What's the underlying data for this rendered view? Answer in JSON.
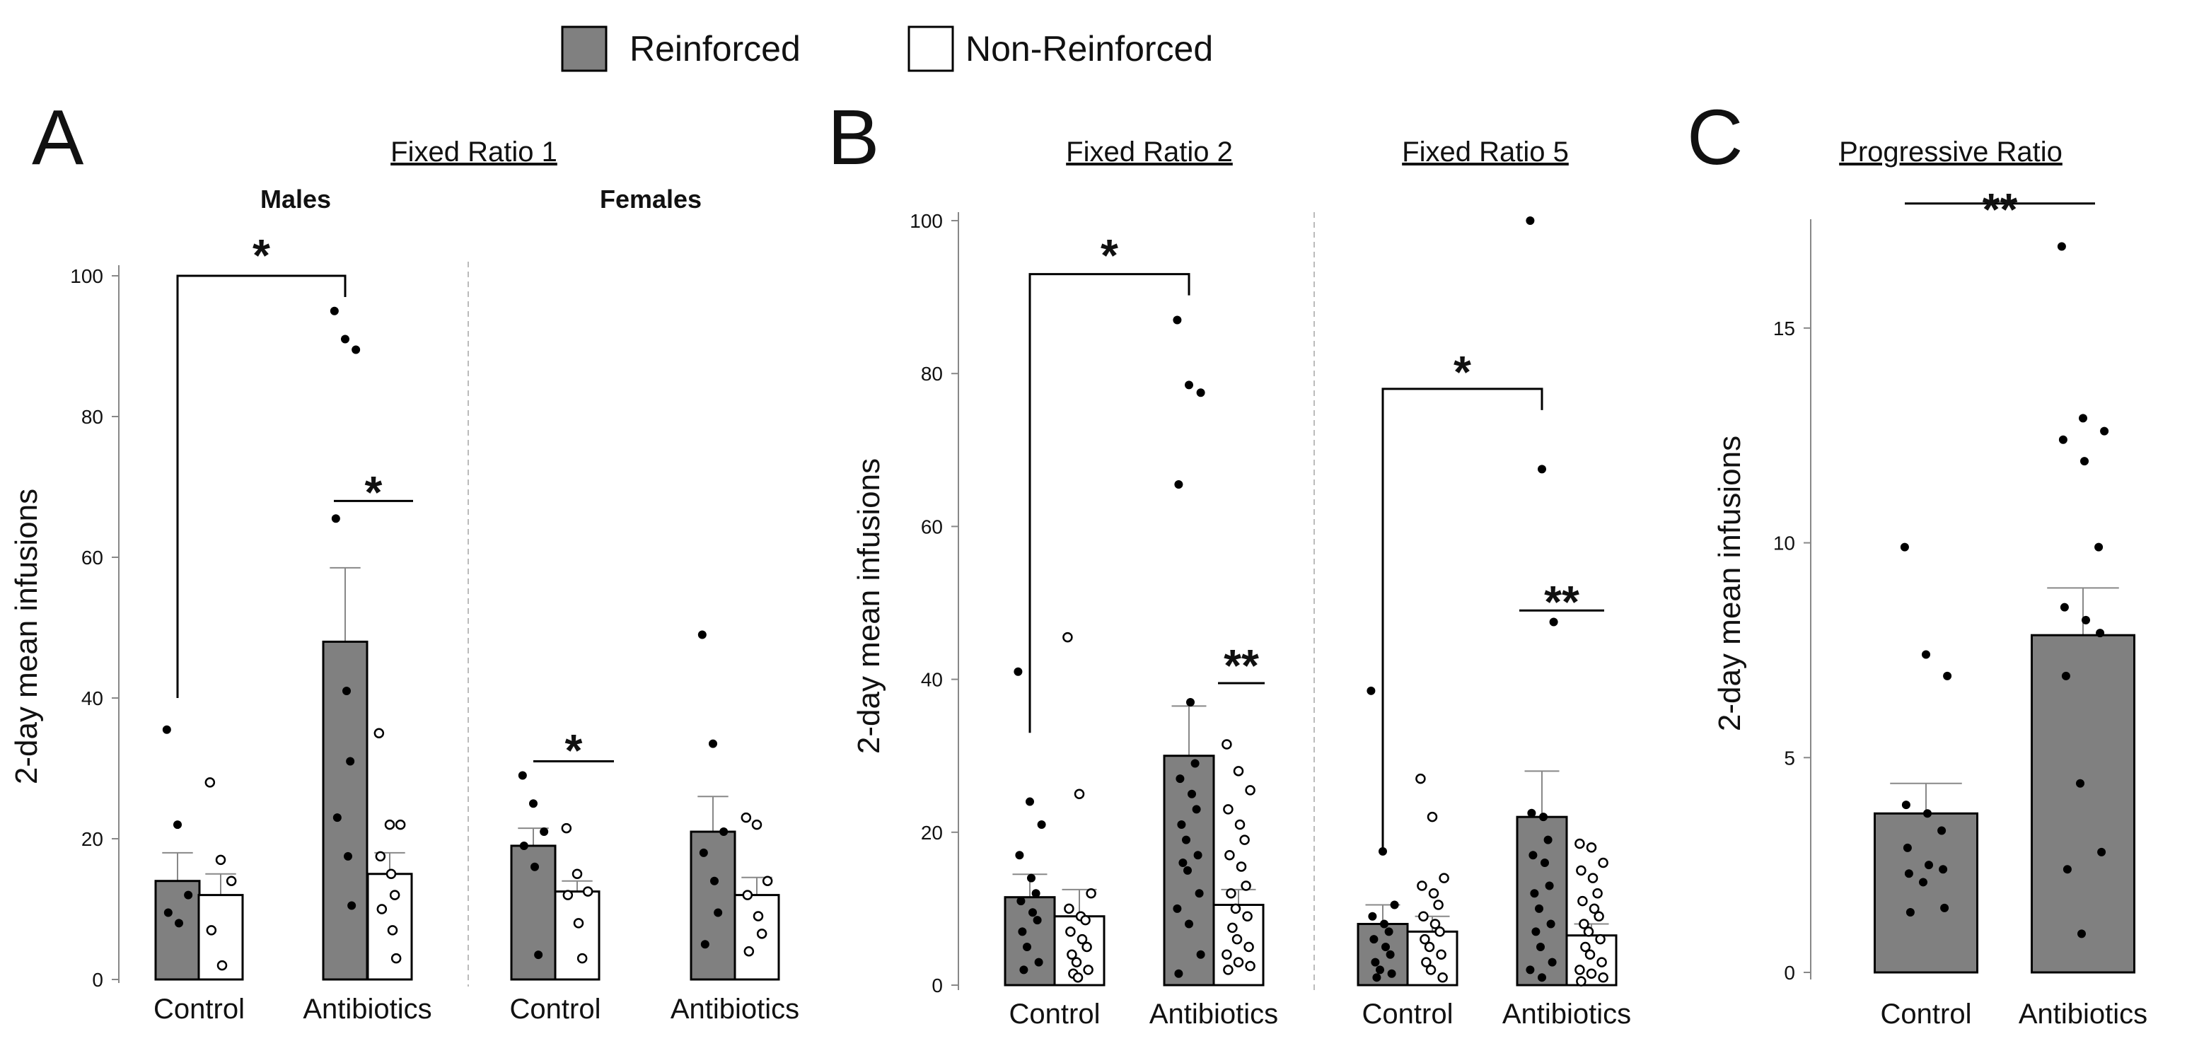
{
  "legend": {
    "items": [
      {
        "label": "Reinforced",
        "color": "#808080"
      },
      {
        "label": "Non-Reinforced",
        "color": "#ffffff"
      }
    ]
  },
  "colors": {
    "reinforced": "#808080",
    "non_reinforced": "#ffffff",
    "edge": "#000000",
    "error": "#888888"
  },
  "panels": [
    {
      "letter": "A",
      "title": "Fixed Ratio 1"
    },
    {
      "letter": "B",
      "titles": [
        "Fixed Ratio 2",
        "Fixed Ratio 5"
      ]
    },
    {
      "letter": "C",
      "title": "Progressive Ratio"
    }
  ],
  "chart_data": [
    {
      "type": "bar",
      "panel": "A",
      "title": "Fixed Ratio 1",
      "subtitle": "Males",
      "ylabel": "2-day mean infusions",
      "ylim": [
        0,
        100
      ],
      "yticks": [
        0,
        20,
        40,
        60,
        80,
        100
      ],
      "categories": [
        "Control",
        "Antibiotics"
      ],
      "series": [
        {
          "name": "Reinforced",
          "values": [
            14,
            48
          ],
          "errors": [
            4,
            10.5
          ],
          "points": [
            [
              35.5,
              22,
              12,
              9.5,
              8
            ],
            [
              95,
              91,
              89.5,
              65.5,
              41,
              31,
              23,
              17.5,
              10.5
            ]
          ]
        },
        {
          "name": "Non-Reinforced",
          "values": [
            12,
            15
          ],
          "errors": [
            3,
            3
          ],
          "points": [
            [
              28,
              17,
              14,
              7,
              2
            ],
            [
              35,
              22,
              22,
              17.5,
              15,
              12,
              10,
              7,
              3
            ]
          ]
        }
      ],
      "annotations": [
        {
          "text": "*",
          "compare": "Control Reinforced vs Antibiotics Reinforced"
        },
        {
          "text": "*",
          "compare": "Antibiotics Reinforced vs Non-Reinforced"
        }
      ]
    },
    {
      "type": "bar",
      "panel": "A",
      "title": "Fixed Ratio 1",
      "subtitle": "Females",
      "ylabel": "2-day mean infusions",
      "ylim": [
        0,
        100
      ],
      "categories": [
        "Control",
        "Antibiotics"
      ],
      "series": [
        {
          "name": "Reinforced",
          "values": [
            19,
            21
          ],
          "errors": [
            2.5,
            5
          ],
          "points": [
            [
              29,
              25,
              21,
              19,
              16,
              3.5
            ],
            [
              49,
              33.5,
              21,
              18,
              14,
              9.5,
              5
            ]
          ]
        },
        {
          "name": "Non-Reinforced",
          "values": [
            12.5,
            12
          ],
          "errors": [
            1.5,
            2.5
          ],
          "points": [
            [
              21.5,
              15,
              12.5,
              12,
              8,
              3
            ],
            [
              23,
              22,
              14,
              12,
              9,
              6.5,
              4
            ]
          ]
        }
      ],
      "annotations": [
        {
          "text": "*",
          "compare": "Control Reinforced vs Non-Reinforced"
        }
      ]
    },
    {
      "type": "bar",
      "panel": "B",
      "title": "Fixed Ratio 2",
      "ylabel": "2-day mean infusions",
      "ylim": [
        0,
        100
      ],
      "yticks": [
        0,
        20,
        40,
        60,
        80,
        100
      ],
      "categories": [
        "Control",
        "Antibiotics"
      ],
      "series": [
        {
          "name": "Reinforced",
          "values": [
            11.5,
            30
          ],
          "errors": [
            3,
            6.5
          ],
          "points": [
            [
              41,
              24,
              21,
              17,
              14,
              12,
              11,
              9.5,
              8.5,
              7,
              5,
              3,
              2
            ],
            [
              87,
              78.5,
              77.5,
              65.5,
              37,
              29,
              27,
              25,
              23,
              21,
              19,
              17,
              16,
              15,
              12,
              10,
              8,
              4,
              1.5
            ]
          ]
        },
        {
          "name": "Non-Reinforced",
          "values": [
            9,
            10.5
          ],
          "errors": [
            3.5,
            2
          ],
          "points": [
            [
              45.5,
              25,
              12,
              10,
              9,
              8.5,
              7,
              6,
              5,
              4,
              3,
              2,
              1.5,
              1
            ],
            [
              31.5,
              28,
              25.5,
              23,
              21,
              19,
              17,
              15.5,
              13,
              12,
              10,
              9,
              7.5,
              6,
              5,
              4,
              3,
              2.5,
              2
            ]
          ]
        }
      ],
      "annotations": [
        {
          "text": "*",
          "compare": "Control Reinforced vs Antibiotics Reinforced"
        },
        {
          "text": "**",
          "compare": "Antibiotics Reinforced vs Non-Reinforced"
        }
      ]
    },
    {
      "type": "bar",
      "panel": "B",
      "title": "Fixed Ratio 5",
      "ylabel": "2-day mean infusions",
      "ylim": [
        0,
        100
      ],
      "categories": [
        "Control",
        "Antibiotics"
      ],
      "series": [
        {
          "name": "Reinforced",
          "values": [
            8,
            22
          ],
          "errors": [
            2.5,
            6
          ],
          "points": [
            [
              38.5,
              17.5,
              10.5,
              9,
              8,
              7,
              6,
              5,
              4,
              3,
              2,
              1.5,
              1
            ],
            [
              100,
              67.5,
              47.5,
              22.5,
              22,
              19,
              17,
              16,
              13,
              12,
              10,
              8,
              7,
              5,
              3,
              2,
              1
            ]
          ]
        },
        {
          "name": "Non-Reinforced",
          "values": [
            7,
            6.5
          ],
          "errors": [
            2,
            1.5
          ],
          "points": [
            [
              27,
              22,
              14,
              13,
              12,
              10.5,
              9,
              8,
              7,
              6,
              5,
              4,
              3,
              2,
              1
            ],
            [
              18.5,
              18,
              16,
              15,
              14,
              12,
              11,
              10,
              9,
              8,
              7,
              6,
              5,
              4,
              3,
              2,
              1.5,
              1,
              0.5
            ]
          ]
        }
      ],
      "annotations": [
        {
          "text": "*",
          "compare": "Control Reinforced vs Antibiotics Reinforced"
        },
        {
          "text": "**",
          "compare": "Antibiotics Reinforced vs Non-Reinforced"
        }
      ]
    },
    {
      "type": "bar",
      "panel": "C",
      "title": "Progressive Ratio",
      "ylabel": "2-day mean infusions",
      "ylim": [
        0,
        17.5
      ],
      "yticks": [
        0,
        5,
        10,
        15
      ],
      "categories": [
        "Control",
        "Antibiotics"
      ],
      "series": [
        {
          "name": "Reinforced",
          "values": [
            3.7,
            7.85
          ],
          "errors": [
            0.7,
            1.1
          ],
          "points": [
            [
              9.9,
              7.4,
              6.9,
              3.9,
              3.7,
              3.3,
              2.9,
              2.5,
              2.4,
              2.3,
              2.1,
              1.5,
              1.4
            ],
            [
              16.9,
              12.9,
              12.6,
              12.4,
              11.9,
              9.9,
              8.5,
              8.2,
              7.9,
              6.9,
              4.4,
              2.8,
              2.4,
              0.9
            ]
          ]
        }
      ],
      "annotations": [
        {
          "text": "**",
          "compare": "Control vs Antibiotics"
        }
      ]
    }
  ]
}
